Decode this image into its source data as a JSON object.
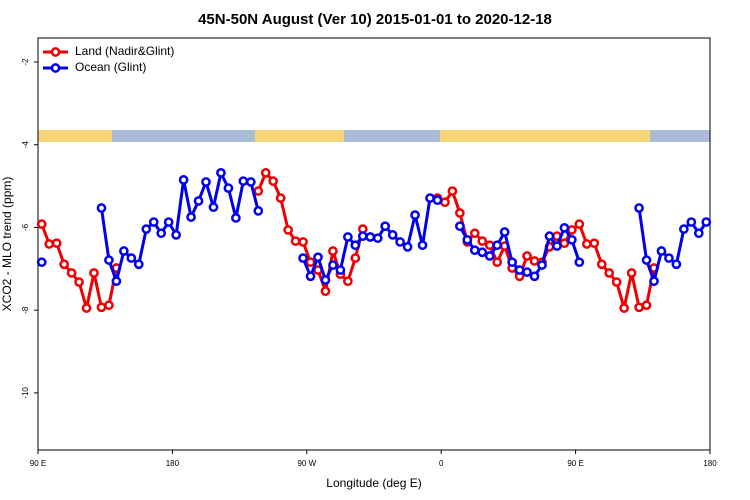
{
  "chart_data": {
    "type": "line",
    "title": "45N-50N August (Ver 10)   2015-01-01 to 2020-12-18",
    "x_label": "Longitude (deg E)",
    "y_label": "XCO2 - MLO trend (ppm)",
    "xlim": [
      90,
      540
    ],
    "xticks": [
      {
        "value": 90,
        "label": "90 E"
      },
      180,
      {
        "value": 270,
        "label": "90 W"
      },
      {
        "value": 360,
        "label": "0"
      },
      {
        "value": 450,
        "label": "90 E"
      },
      {
        "value": 540,
        "label": "180"
      }
    ],
    "ylim": [
      -11.38,
      -1.42
    ],
    "yticks": [
      -2,
      -4,
      -6,
      -8,
      -10
    ],
    "legend": "topleft",
    "x": [
      92.5,
      97.5,
      102.5,
      107.5,
      112.5,
      117.5,
      122.5,
      127.5,
      132.5,
      137.5,
      142.5,
      147.5,
      152.5,
      157.5,
      162.5,
      167.5,
      172.5,
      177.5,
      182.5,
      187.5,
      192.5,
      197.5,
      202.5,
      207.5,
      212.5,
      217.5,
      222.5,
      227.5,
      232.5,
      237.5,
      242.5,
      247.5,
      252.5,
      257.5,
      262.5,
      267.5,
      272.5,
      277.5,
      282.5,
      287.5,
      292.5,
      297.5,
      302.5,
      307.5,
      312.5,
      317.5,
      322.5,
      327.5,
      332.5,
      337.5,
      342.5,
      347.5,
      352.5,
      357.5,
      362.5,
      367.5,
      372.5,
      377.5,
      382.5,
      387.5,
      392.5,
      397.5,
      402.5,
      407.5,
      412.5,
      417.5,
      422.5,
      427.5,
      432.5,
      437.5,
      442.5,
      447.5,
      452.5,
      457.5,
      462.5,
      467.5,
      472.5,
      477.5,
      482.5,
      487.5,
      492.5,
      497.5,
      502.5,
      507.5,
      512.5,
      517.5,
      522.5,
      527.5,
      532.5,
      537.5
    ],
    "series": [
      {
        "name": "Land (Nadir&Glint)",
        "color": "#ee0000",
        "values": [
          -5.92,
          -6.4,
          -6.38,
          -6.89,
          -7.1,
          -7.32,
          -7.95,
          -7.1,
          -7.93,
          -7.88,
          -6.98,
          null,
          null,
          null,
          null,
          null,
          null,
          null,
          null,
          null,
          null,
          null,
          null,
          null,
          null,
          null,
          null,
          null,
          null,
          -5.12,
          -4.68,
          -4.88,
          -5.29,
          -6.06,
          -6.33,
          -6.35,
          -6.84,
          -7.03,
          -7.54,
          -6.57,
          -7.13,
          -7.3,
          -6.74,
          -6.04,
          null,
          null,
          null,
          null,
          null,
          null,
          null,
          null,
          null,
          -5.29,
          -5.39,
          -5.12,
          -5.65,
          -6.35,
          -6.14,
          -6.33,
          -6.43,
          -6.84,
          -6.45,
          -6.98,
          -7.18,
          -6.69,
          -6.81,
          -6.84,
          -6.47,
          -6.21,
          -6.38,
          -6.06,
          -5.92,
          -6.4,
          -6.38,
          -6.89,
          -7.1,
          -7.32,
          -7.95,
          -7.1,
          -7.93,
          -7.88,
          -6.98,
          null,
          null,
          null,
          null,
          null,
          null,
          null
        ]
      },
      {
        "name": "Ocean (Glint)",
        "color": "#0000ee",
        "values": [
          -6.84,
          null,
          null,
          null,
          null,
          null,
          null,
          null,
          -5.53,
          -6.79,
          -7.3,
          -6.57,
          -6.74,
          -6.89,
          -6.04,
          -5.87,
          -6.14,
          -5.87,
          -6.18,
          -4.85,
          -5.75,
          -5.36,
          -4.9,
          -5.51,
          -4.68,
          -5.05,
          -5.77,
          -4.88,
          -4.9,
          -5.6,
          null,
          null,
          null,
          null,
          null,
          -6.74,
          -7.18,
          -6.72,
          -7.27,
          -6.91,
          -7.03,
          -6.23,
          -6.43,
          -6.21,
          -6.23,
          -6.26,
          -5.97,
          -6.18,
          -6.35,
          -6.47,
          -5.7,
          -6.43,
          -5.29,
          -5.34,
          null,
          null,
          -5.97,
          -6.3,
          -6.55,
          -6.6,
          -6.69,
          -6.43,
          -6.11,
          -6.84,
          -7.03,
          -7.08,
          -7.18,
          -6.91,
          -6.21,
          -6.45,
          -6.01,
          -6.3,
          -6.84,
          null,
          null,
          null,
          null,
          null,
          null,
          null,
          -5.53,
          -6.79,
          -7.3,
          -6.57,
          -6.74,
          -6.89,
          -6.04,
          -5.87,
          -6.14,
          -5.87
        ]
      }
    ]
  }
}
